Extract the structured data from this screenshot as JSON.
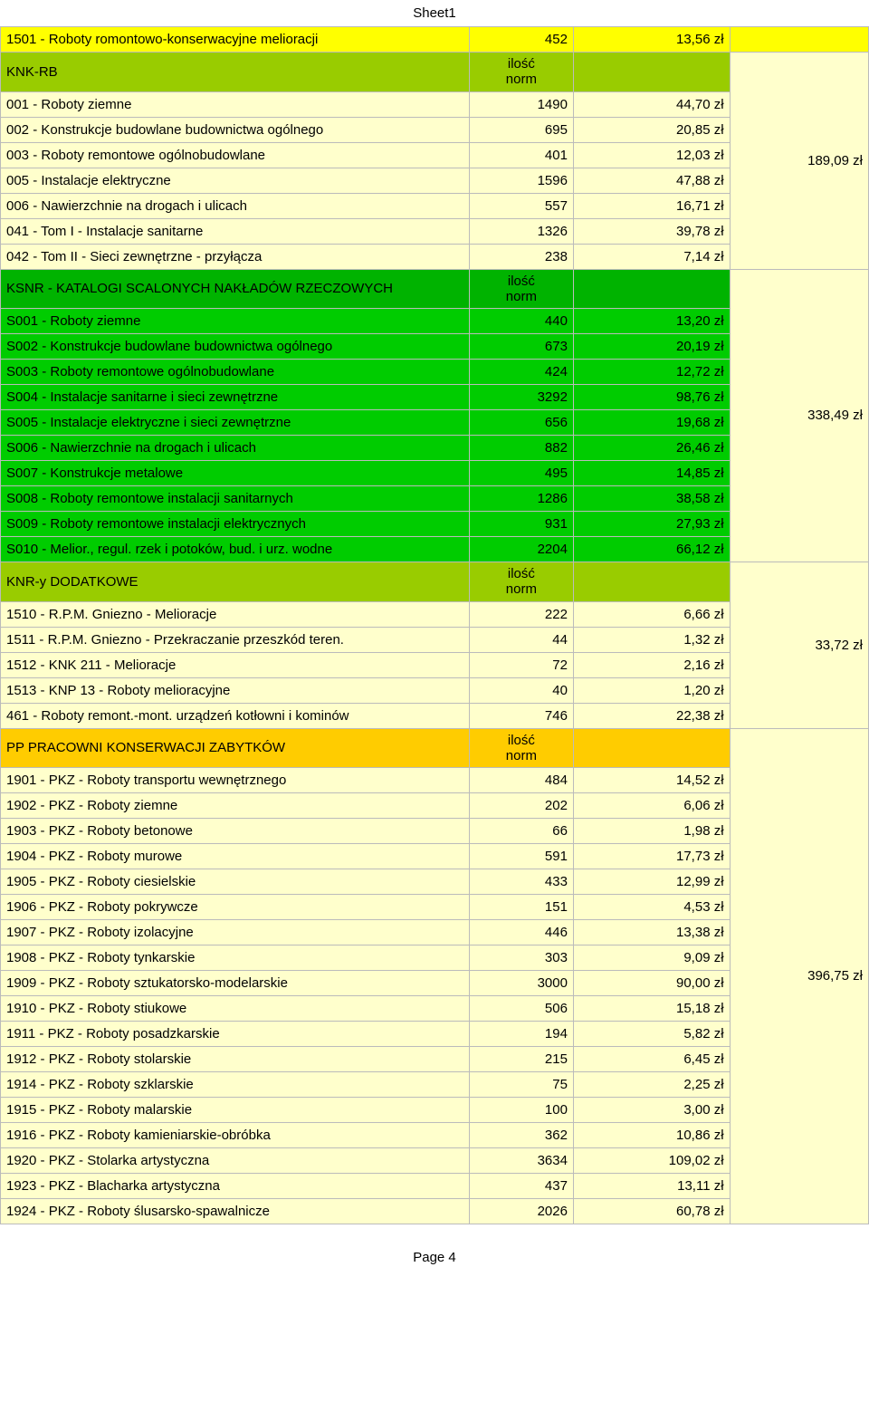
{
  "sheet_title": "Sheet1",
  "footer": "Page 4",
  "ilosc_norm": "ilość\nnorm",
  "sections": [
    {
      "type": "top_row",
      "bg": "bg-yellow",
      "label": "1501 - Roboty romontowo-konserwacyjne melioracji",
      "count": "452",
      "price": "13,56 zł"
    },
    {
      "type": "header",
      "bg": "bg-olive",
      "label": "KNK-RB"
    },
    {
      "type": "block",
      "row_bg": "bg-cream",
      "total_bg": "bg-cream",
      "total": "189,09 zł",
      "rows": [
        {
          "label": "001 - Roboty ziemne",
          "count": "1490",
          "price": "44,70 zł"
        },
        {
          "label": "002 - Konstrukcje budowlane budownictwa ogólnego",
          "count": "695",
          "price": "20,85 zł"
        },
        {
          "label": "003 - Roboty remontowe ogólnobudowlane",
          "count": "401",
          "price": "12,03 zł"
        },
        {
          "label": "005 - Instalacje elektryczne",
          "count": "1596",
          "price": "47,88 zł"
        },
        {
          "label": "006 - Nawierzchnie na drogach i ulicach",
          "count": "557",
          "price": "16,71 zł"
        },
        {
          "label": "041 - Tom I - Instalacje sanitarne",
          "count": "1326",
          "price": "39,78 zł"
        },
        {
          "label": "042 - Tom II - Sieci zewnętrzne - przyłącza",
          "count": "238",
          "price": "7,14 zł"
        }
      ]
    },
    {
      "type": "header",
      "bg": "bg-greenhdr",
      "label": "KSNR - KATALOGI SCALONYCH NAKŁADÓW RZECZOWYCH"
    },
    {
      "type": "block",
      "row_bg": "bg-green",
      "total_bg": "bg-cream",
      "total": "338,49 zł",
      "rows": [
        {
          "label": "S001 - Roboty ziemne",
          "count": "440",
          "price": "13,20 zł"
        },
        {
          "label": "S002 - Konstrukcje budowlane budownictwa ogólnego",
          "count": "673",
          "price": "20,19 zł"
        },
        {
          "label": "S003 - Roboty remontowe ogólnobudowlane",
          "count": "424",
          "price": "12,72 zł"
        },
        {
          "label": "S004 - Instalacje sanitarne i sieci zewnętrzne",
          "count": "3292",
          "price": "98,76 zł"
        },
        {
          "label": "S005 - Instalacje elektryczne i sieci zewnętrzne",
          "count": "656",
          "price": "19,68 zł"
        },
        {
          "label": "S006 - Nawierzchnie na drogach i ulicach",
          "count": "882",
          "price": "26,46 zł"
        },
        {
          "label": "S007 - Konstrukcje metalowe",
          "count": "495",
          "price": "14,85 zł"
        },
        {
          "label": "S008 - Roboty remontowe instalacji sanitarnych",
          "count": "1286",
          "price": "38,58 zł"
        },
        {
          "label": "S009 - Roboty remontowe instalacji elektrycznych",
          "count": "931",
          "price": "27,93 zł"
        },
        {
          "label": "S010 - Melior., regul. rzek i potoków, bud. i urz. wodne",
          "count": "2204",
          "price": "66,12 zł"
        }
      ]
    },
    {
      "type": "header",
      "bg": "bg-olive",
      "label": "KNR-y DODATKOWE"
    },
    {
      "type": "block",
      "row_bg": "bg-cream",
      "total_bg": "bg-cream",
      "total": "33,72 zł",
      "rows": [
        {
          "label": "1510 - R.P.M. Gniezno - Melioracje",
          "count": "222",
          "price": "6,66 zł"
        },
        {
          "label": "1511 - R.P.M. Gniezno - Przekraczanie przeszkód teren.",
          "count": "44",
          "price": "1,32 zł"
        },
        {
          "label": "1512 - KNK 211 - Melioracje",
          "count": "72",
          "price": "2,16 zł"
        },
        {
          "label": "1513 - KNP 13 - Roboty melioracyjne",
          "count": "40",
          "price": "1,20 zł"
        },
        {
          "label": "461 - Roboty remont.-mont. urządzeń kotłowni i kominów",
          "count": "746",
          "price": "22,38 zł"
        }
      ]
    },
    {
      "type": "header",
      "bg": "bg-gold",
      "label": "PP PRACOWNI KONSERWACJI ZABYTKÓW"
    },
    {
      "type": "block",
      "row_bg": "bg-cream",
      "total_bg": "bg-cream",
      "total": "396,75 zł",
      "rows": [
        {
          "label": "1901 - PKZ - Roboty transportu wewnętrznego",
          "count": "484",
          "price": "14,52 zł"
        },
        {
          "label": "1902 - PKZ - Roboty ziemne",
          "count": "202",
          "price": "6,06 zł"
        },
        {
          "label": "1903 - PKZ - Roboty betonowe",
          "count": "66",
          "price": "1,98 zł"
        },
        {
          "label": "1904 - PKZ - Roboty murowe",
          "count": "591",
          "price": "17,73 zł"
        },
        {
          "label": "1905 - PKZ - Roboty ciesielskie",
          "count": "433",
          "price": "12,99 zł"
        },
        {
          "label": "1906 - PKZ - Roboty pokrywcze",
          "count": "151",
          "price": "4,53 zł"
        },
        {
          "label": "1907 - PKZ - Roboty izolacyjne",
          "count": "446",
          "price": "13,38 zł"
        },
        {
          "label": "1908 - PKZ - Roboty tynkarskie",
          "count": "303",
          "price": "9,09 zł"
        },
        {
          "label": "1909 - PKZ - Roboty sztukatorsko-modelarskie",
          "count": "3000",
          "price": "90,00 zł"
        },
        {
          "label": "1910 - PKZ - Roboty stiukowe",
          "count": "506",
          "price": "15,18 zł"
        },
        {
          "label": "1911 - PKZ - Roboty posadzkarskie",
          "count": "194",
          "price": "5,82 zł"
        },
        {
          "label": "1912 - PKZ - Roboty stolarskie",
          "count": "215",
          "price": "6,45 zł"
        },
        {
          "label": "1914 - PKZ - Roboty szklarskie",
          "count": "75",
          "price": "2,25 zł"
        },
        {
          "label": "1915 - PKZ - Roboty malarskie",
          "count": "100",
          "price": "3,00 zł"
        },
        {
          "label": "1916 - PKZ - Roboty kamieniarskie-obróbka",
          "count": "362",
          "price": "10,86 zł"
        },
        {
          "label": "1920 - PKZ - Stolarka artystyczna",
          "count": "3634",
          "price": "109,02 zł"
        },
        {
          "label": "1923 - PKZ - Blacharka artystyczna",
          "count": "437",
          "price": "13,11 zł"
        },
        {
          "label": "1924 - PKZ - Roboty ślusarsko-spawalnicze",
          "count": "2026",
          "price": "60,78 zł"
        }
      ]
    }
  ]
}
